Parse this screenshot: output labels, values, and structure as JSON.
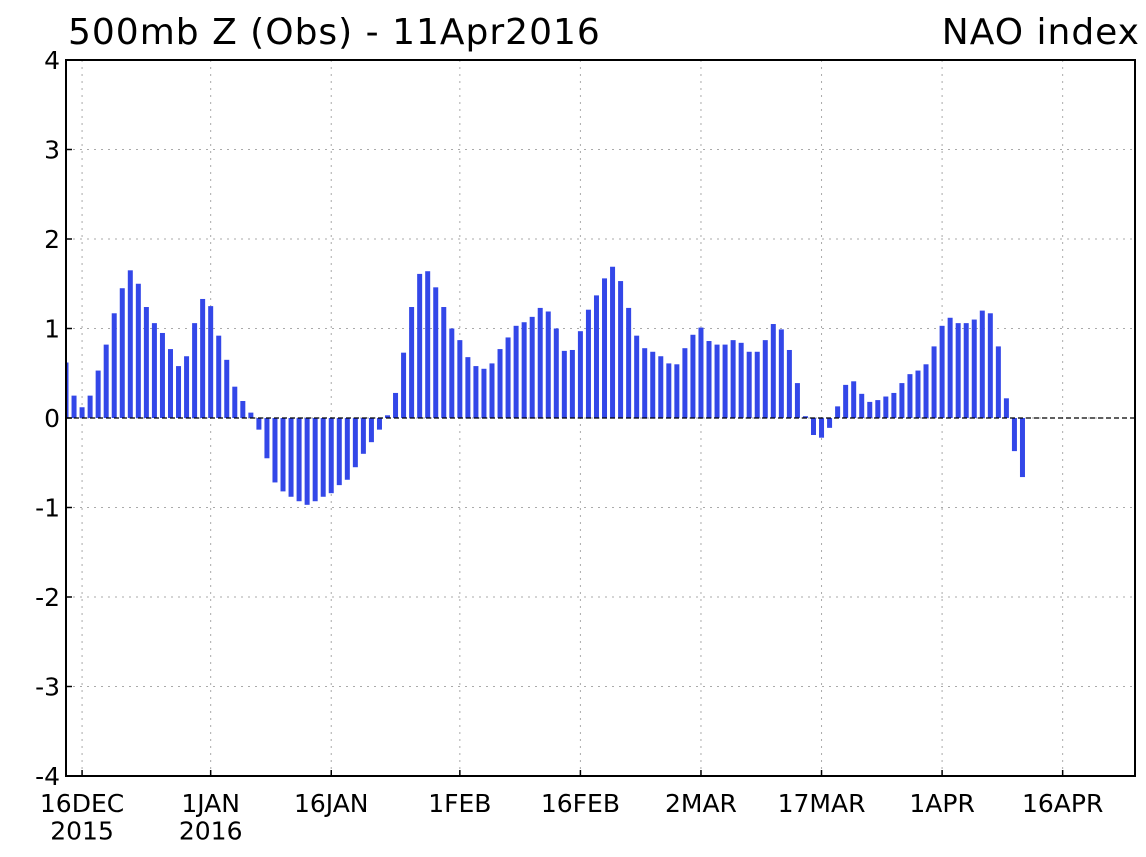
{
  "chart_data": {
    "type": "bar",
    "title": "500mb Z (Obs) - 11Apr2016",
    "subtitle": "NAO index",
    "color": "#3347e8",
    "grid": true,
    "zero_line": true,
    "x": [
      "2015-12-14",
      "2015-12-15",
      "2015-12-16",
      "2015-12-17",
      "2015-12-18",
      "2015-12-19",
      "2015-12-20",
      "2015-12-21",
      "2015-12-22",
      "2015-12-23",
      "2015-12-24",
      "2015-12-25",
      "2015-12-26",
      "2015-12-27",
      "2015-12-28",
      "2015-12-29",
      "2015-12-30",
      "2015-12-31",
      "2016-01-01",
      "2016-01-02",
      "2016-01-03",
      "2016-01-04",
      "2016-01-05",
      "2016-01-06",
      "2016-01-07",
      "2016-01-08",
      "2016-01-09",
      "2016-01-10",
      "2016-01-11",
      "2016-01-12",
      "2016-01-13",
      "2016-01-14",
      "2016-01-15",
      "2016-01-16",
      "2016-01-17",
      "2016-01-18",
      "2016-01-19",
      "2016-01-20",
      "2016-01-21",
      "2016-01-22",
      "2016-01-23",
      "2016-01-24",
      "2016-01-25",
      "2016-01-26",
      "2016-01-27",
      "2016-01-28",
      "2016-01-29",
      "2016-01-30",
      "2016-01-31",
      "2016-02-01",
      "2016-02-02",
      "2016-02-03",
      "2016-02-04",
      "2016-02-05",
      "2016-02-06",
      "2016-02-07",
      "2016-02-08",
      "2016-02-09",
      "2016-02-10",
      "2016-02-11",
      "2016-02-12",
      "2016-02-13",
      "2016-02-14",
      "2016-02-15",
      "2016-02-16",
      "2016-02-17",
      "2016-02-18",
      "2016-02-19",
      "2016-02-20",
      "2016-02-21",
      "2016-02-22",
      "2016-02-23",
      "2016-02-24",
      "2016-02-25",
      "2016-02-26",
      "2016-02-27",
      "2016-02-28",
      "2016-02-29",
      "2016-03-01",
      "2016-03-02",
      "2016-03-03",
      "2016-03-04",
      "2016-03-05",
      "2016-03-06",
      "2016-03-07",
      "2016-03-08",
      "2016-03-09",
      "2016-03-10",
      "2016-03-11",
      "2016-03-12",
      "2016-03-13",
      "2016-03-14",
      "2016-03-15",
      "2016-03-16",
      "2016-03-17",
      "2016-03-18",
      "2016-03-19",
      "2016-03-20",
      "2016-03-21",
      "2016-03-22",
      "2016-03-23",
      "2016-03-24",
      "2016-03-25",
      "2016-03-26",
      "2016-03-27",
      "2016-03-28",
      "2016-03-29",
      "2016-03-30",
      "2016-03-31",
      "2016-04-01",
      "2016-04-02",
      "2016-04-03",
      "2016-04-04",
      "2016-04-05",
      "2016-04-06",
      "2016-04-07",
      "2016-04-08",
      "2016-04-09",
      "2016-04-10",
      "2016-04-11"
    ],
    "values": [
      0.62,
      0.25,
      0.12,
      0.25,
      0.53,
      0.82,
      1.17,
      1.45,
      1.65,
      1.5,
      1.24,
      1.06,
      0.95,
      0.77,
      0.58,
      0.69,
      1.06,
      1.33,
      1.25,
      0.92,
      0.65,
      0.35,
      0.19,
      0.06,
      -0.13,
      -0.45,
      -0.72,
      -0.82,
      -0.88,
      -0.93,
      -0.97,
      -0.93,
      -0.88,
      -0.84,
      -0.75,
      -0.69,
      -0.55,
      -0.4,
      -0.27,
      -0.13,
      0.03,
      0.28,
      0.73,
      1.24,
      1.61,
      1.64,
      1.46,
      1.24,
      1.0,
      0.87,
      0.68,
      0.58,
      0.55,
      0.61,
      0.77,
      0.9,
      1.03,
      1.07,
      1.13,
      1.23,
      1.19,
      1.0,
      0.75,
      0.76,
      0.97,
      1.21,
      1.37,
      1.56,
      1.69,
      1.53,
      1.23,
      0.92,
      0.78,
      0.74,
      0.69,
      0.61,
      0.6,
      0.78,
      0.93,
      1.01,
      0.86,
      0.82,
      0.82,
      0.87,
      0.84,
      0.74,
      0.74,
      0.87,
      1.05,
      0.99,
      0.76,
      0.39,
      0.02,
      -0.19,
      -0.22,
      -0.11,
      0.13,
      0.37,
      0.41,
      0.27,
      0.18,
      0.2,
      0.24,
      0.28,
      0.39,
      0.49,
      0.53,
      0.6,
      0.8,
      1.03,
      1.12,
      1.06,
      1.06,
      1.1,
      1.2,
      1.17,
      0.8,
      0.22,
      -0.37,
      -0.66
    ],
    "xlim": [
      "2015-12-14",
      "2016-04-25"
    ],
    "xticks": [
      {
        "value": "2015-12-16",
        "label": "16DEC\n2015"
      },
      {
        "value": "2016-01-01",
        "label": "1JAN\n2016"
      },
      {
        "value": "2016-01-16",
        "label": "16JAN"
      },
      {
        "value": "2016-02-01",
        "label": "1FEB"
      },
      {
        "value": "2016-02-16",
        "label": "16FEB"
      },
      {
        "value": "2016-03-02",
        "label": "2MAR"
      },
      {
        "value": "2016-03-17",
        "label": "17MAR"
      },
      {
        "value": "2016-04-01",
        "label": "1APR"
      },
      {
        "value": "2016-04-16",
        "label": "16APR"
      }
    ],
    "ylim": [
      -4,
      4
    ],
    "yticks": [
      -4,
      -3,
      -2,
      -1,
      0,
      1,
      2,
      3,
      4
    ]
  }
}
